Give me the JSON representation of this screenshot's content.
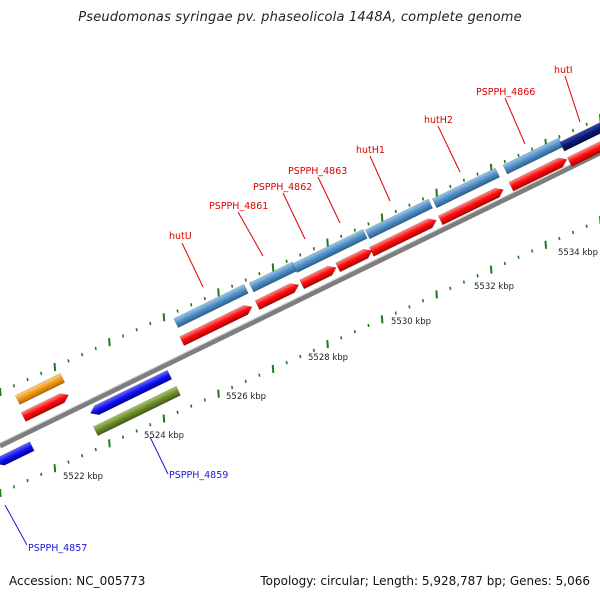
{
  "title": "Pseudomonas syringae pv. phaseolicola 1448A, complete genome",
  "footer": {
    "accession": "Accession: NC_005773",
    "summary": "Topology: circular; Length: 5,928,787 bp; Genes: 5,066"
  },
  "colors": {
    "backbone": "#8c8c8c",
    "tick": "#1f7a1f",
    "forward_gene": "#ff1010",
    "feature_steelblue": "#4f8fc6",
    "feature_blue": "#1010ee",
    "feature_navy": "#0a1a7a",
    "feature_orange": "#f39a12",
    "feature_olive": "#6d8c2a",
    "label_red": "#dd0000",
    "label_blue": "#1a1ad6"
  },
  "map": {
    "kbp_labels": [
      "5522 kbp",
      "5524 kbp",
      "5526 kbp",
      "5528 kbp",
      "5530 kbp",
      "5532 kbp",
      "5534 kbp"
    ],
    "gene_labels_top": [
      "hutU",
      "PSPPH_4861",
      "PSPPH_4862",
      "PSPPH_4863",
      "hutH1",
      "hutH2",
      "PSPPH_4866",
      "hutI"
    ],
    "gene_labels_bottom": [
      "PSPPH_4859",
      "PSPPH_4857"
    ]
  }
}
